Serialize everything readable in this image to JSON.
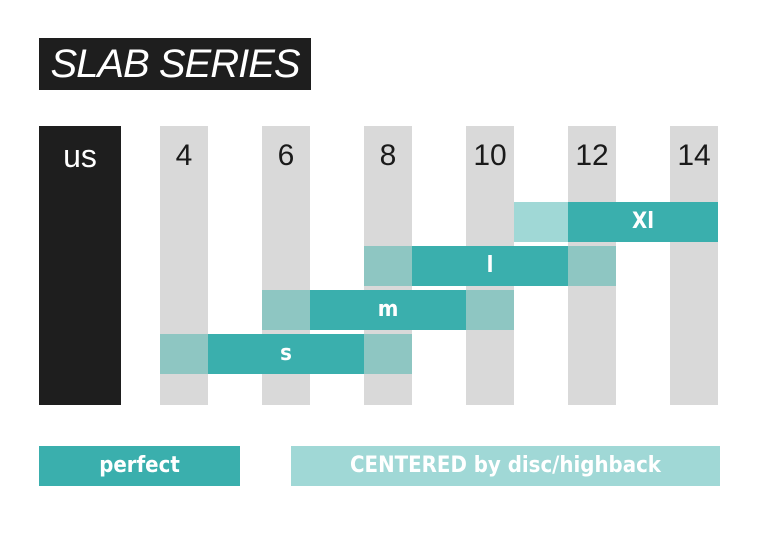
{
  "title": "SLAB SERIES",
  "header_label": "us",
  "sizes": [
    "4",
    "6",
    "8",
    "10",
    "12",
    "14"
  ],
  "rows": [
    {
      "label": "Xl"
    },
    {
      "label": "l"
    },
    {
      "label": "m"
    },
    {
      "label": "s"
    }
  ],
  "legend": {
    "perfect": "perfect",
    "centered": "CENTERED by disc/highback"
  },
  "colors": {
    "perfect": "#3aafad",
    "centered": "#a0d8d6",
    "column": "#d9d9d9",
    "header": "#1e1e1e"
  }
}
